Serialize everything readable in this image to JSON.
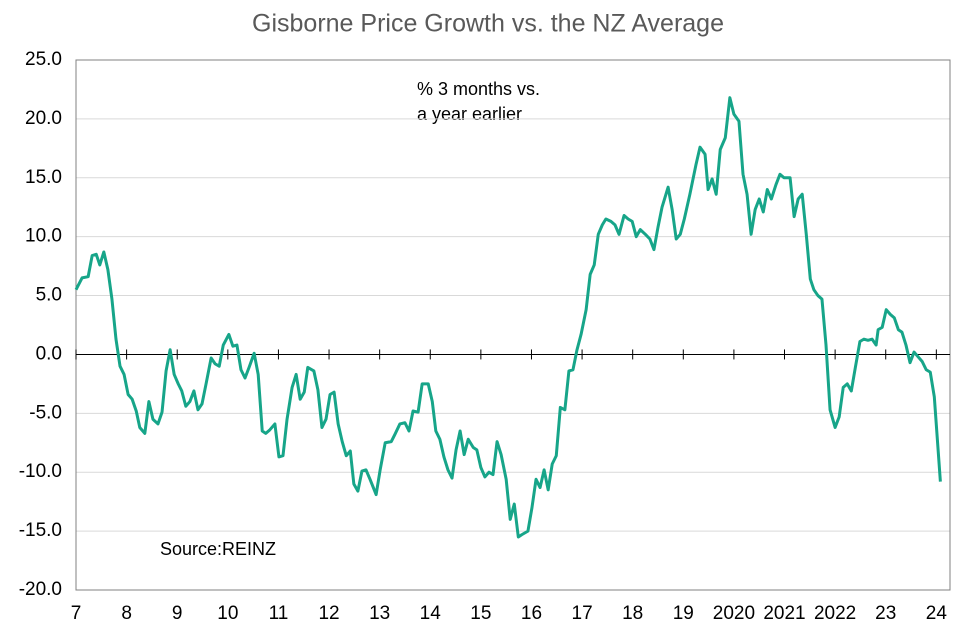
{
  "chart_data": {
    "type": "line",
    "title": "Gisborne Price Growth vs. the NZ Average",
    "annotations": [
      "% 3 months  vs.",
      "a year earlier",
      "Source:REINZ"
    ],
    "xlim": [
      2007,
      2024.27
    ],
    "xticks": [
      {
        "value": 2007,
        "label": "7"
      },
      {
        "value": 2008,
        "label": "8"
      },
      {
        "value": 2009,
        "label": "9"
      },
      {
        "value": 2010,
        "label": "10"
      },
      {
        "value": 2011,
        "label": "11"
      },
      {
        "value": 2012,
        "label": "12"
      },
      {
        "value": 2013,
        "label": "13"
      },
      {
        "value": 2014,
        "label": "14"
      },
      {
        "value": 2015,
        "label": "15"
      },
      {
        "value": 2016,
        "label": "16"
      },
      {
        "value": 2017,
        "label": "17"
      },
      {
        "value": 2018,
        "label": "18"
      },
      {
        "value": 2019,
        "label": "19"
      },
      2020,
      2021,
      2022,
      {
        "value": 2023,
        "label": "23"
      },
      {
        "value": 2024,
        "label": "24"
      }
    ],
    "ylim": [
      -20,
      25
    ],
    "yticks": [
      {
        "value": -20,
        "label": "-20.0"
      },
      {
        "value": -15,
        "label": "-15.0"
      },
      {
        "value": -10,
        "label": "-10.0"
      },
      {
        "value": -5,
        "label": "-5.0"
      },
      {
        "value": 0,
        "label": "0.0"
      },
      {
        "value": 5,
        "label": "5.0"
      },
      {
        "value": 10,
        "label": "10.0"
      },
      {
        "value": 15,
        "label": "15.0"
      },
      {
        "value": 20,
        "label": "20.0"
      },
      {
        "value": 25,
        "label": "25.0"
      }
    ],
    "grid": true,
    "color": "#17a589",
    "x": [
      2007,
      2007.12,
      2007.24,
      2007.32,
      2007.4,
      2007.47,
      2007.55,
      2007.63,
      2007.71,
      2007.79,
      2007.87,
      2007.95,
      2008.03,
      2008.11,
      2008.19,
      2008.26,
      2008.36,
      2008.44,
      2008.52,
      2008.62,
      2008.7,
      2008.78,
      2008.86,
      2008.94,
      2009.02,
      2009.09,
      2009.17,
      2009.25,
      2009.33,
      2009.41,
      2009.49,
      2009.57,
      2009.67,
      2009.75,
      2009.83,
      2009.91,
      2010.02,
      2010.1,
      2010.18,
      2010.26,
      2010.34,
      2010.42,
      2010.52,
      2010.6,
      2010.68,
      2010.75,
      2010.83,
      2010.93,
      2011.01,
      2011.09,
      2011.17,
      2011.27,
      2011.35,
      2011.43,
      2011.51,
      2011.58,
      2011.7,
      2011.78,
      2011.86,
      2011.94,
      2012.02,
      2012.1,
      2012.18,
      2012.26,
      2012.34,
      2012.42,
      2012.49,
      2012.57,
      2012.65,
      2012.73,
      2012.81,
      2012.93,
      2013.01,
      2013.11,
      2013.23,
      2013.3,
      2013.4,
      2013.5,
      2013.58,
      2013.66,
      2013.76,
      2013.84,
      2013.96,
      2014.04,
      2014.11,
      2014.19,
      2014.27,
      2014.35,
      2014.43,
      2014.51,
      2014.59,
      2014.67,
      2014.75,
      2014.85,
      2014.92,
      2015.0,
      2015.08,
      2015.16,
      2015.24,
      2015.32,
      2015.4,
      2015.5,
      2015.58,
      2015.66,
      2015.74,
      2015.81,
      2015.93,
      2016.01,
      2016.09,
      2016.17,
      2016.25,
      2016.33,
      2016.41,
      2016.49,
      2016.57,
      2016.66,
      2016.74,
      2016.82,
      2016.9,
      2016.98,
      2017.08,
      2017.16,
      2017.24,
      2017.32,
      2017.4,
      2017.47,
      2017.57,
      2017.65,
      2017.73,
      2017.83,
      2017.91,
      2017.99,
      2018.07,
      2018.15,
      2018.25,
      2018.34,
      2018.42,
      2018.5,
      2018.58,
      2018.7,
      2018.78,
      2018.86,
      2018.94,
      2019.02,
      2019.13,
      2019.25,
      2019.33,
      2019.43,
      2019.49,
      2019.57,
      2019.65,
      2019.73,
      2019.83,
      2019.92,
      2020.0,
      2020.1,
      2020.18,
      2020.26,
      2020.34,
      2020.42,
      2020.5,
      2020.58,
      2020.66,
      2020.74,
      2020.83,
      2020.91,
      2020.99,
      2021.11,
      2021.19,
      2021.27,
      2021.35,
      2021.43,
      2021.51,
      2021.58,
      2021.66,
      2021.74,
      2021.82,
      2021.9,
      2022.0,
      2022.08,
      2022.16,
      2022.24,
      2022.32,
      2022.4,
      2022.49,
      2022.57,
      2022.65,
      2022.73,
      2022.81,
      2022.85,
      2022.93,
      2023.01,
      2023.09,
      2023.17,
      2023.25,
      2023.32,
      2023.4,
      2023.48,
      2023.56,
      2023.64,
      2023.72,
      2023.8,
      2023.88,
      2023.96,
      2024.08
    ],
    "values": [
      5.5,
      6.5,
      6.6,
      8.4,
      8.5,
      7.6,
      8.7,
      7.2,
      4.7,
      1.3,
      -1.0,
      -1.7,
      -3.4,
      -3.8,
      -4.8,
      -6.2,
      -6.7,
      -4.0,
      -5.5,
      -5.9,
      -4.9,
      -1.4,
      0.4,
      -1.7,
      -2.5,
      -3.1,
      -4.4,
      -4.0,
      -3.1,
      -4.7,
      -4.2,
      -2.5,
      -0.3,
      -0.8,
      -1.0,
      0.8,
      1.7,
      0.7,
      0.8,
      -1.3,
      -2.0,
      -1.1,
      0.1,
      -1.7,
      -6.5,
      -6.7,
      -6.4,
      -5.9,
      -8.7,
      -8.6,
      -5.5,
      -2.8,
      -1.7,
      -3.8,
      -3.2,
      -1.1,
      -1.4,
      -3.0,
      -6.2,
      -5.5,
      -3.4,
      -3.2,
      -5.9,
      -7.4,
      -8.6,
      -8.2,
      -11.0,
      -11.6,
      -9.9,
      -9.8,
      -10.6,
      -11.9,
      -9.8,
      -7.5,
      -7.4,
      -6.8,
      -5.9,
      -5.8,
      -6.5,
      -4.8,
      -4.9,
      -2.5,
      -2.5,
      -4.0,
      -6.5,
      -7.2,
      -8.7,
      -9.8,
      -10.5,
      -8.1,
      -6.5,
      -8.5,
      -7.2,
      -7.9,
      -8.1,
      -9.6,
      -10.4,
      -10.0,
      -10.2,
      -7.4,
      -8.5,
      -10.6,
      -14.0,
      -12.7,
      -15.5,
      -15.3,
      -15.0,
      -13.0,
      -10.6,
      -11.3,
      -9.8,
      -11.5,
      -9.3,
      -8.6,
      -4.5,
      -4.7,
      -1.4,
      -1.3,
      0.4,
      1.7,
      3.8,
      6.8,
      7.6,
      10.2,
      11.0,
      11.5,
      11.3,
      11.0,
      10.2,
      11.8,
      11.5,
      11.3,
      10.0,
      10.6,
      10.2,
      9.8,
      8.9,
      10.8,
      12.5,
      14.2,
      12.3,
      9.8,
      10.2,
      11.5,
      13.6,
      16.1,
      17.6,
      17.0,
      14.0,
      14.9,
      13.6,
      17.4,
      18.4,
      21.8,
      20.4,
      19.8,
      15.3,
      13.6,
      10.2,
      12.3,
      13.2,
      12.1,
      14.0,
      13.2,
      14.4,
      15.3,
      15.0,
      15.0,
      11.7,
      13.2,
      13.6,
      10.2,
      6.4,
      5.5,
      5.0,
      4.7,
      0.8,
      -4.7,
      -6.2,
      -5.3,
      -2.8,
      -2.5,
      -3.1,
      -1.1,
      1.1,
      1.3,
      1.2,
      1.3,
      0.8,
      2.1,
      2.3,
      3.8,
      3.4,
      3.1,
      2.1,
      1.9,
      0.8,
      -0.7,
      0.2,
      -0.2,
      -0.6,
      -1.3,
      -1.5,
      -3.6,
      -10.8
    ]
  }
}
